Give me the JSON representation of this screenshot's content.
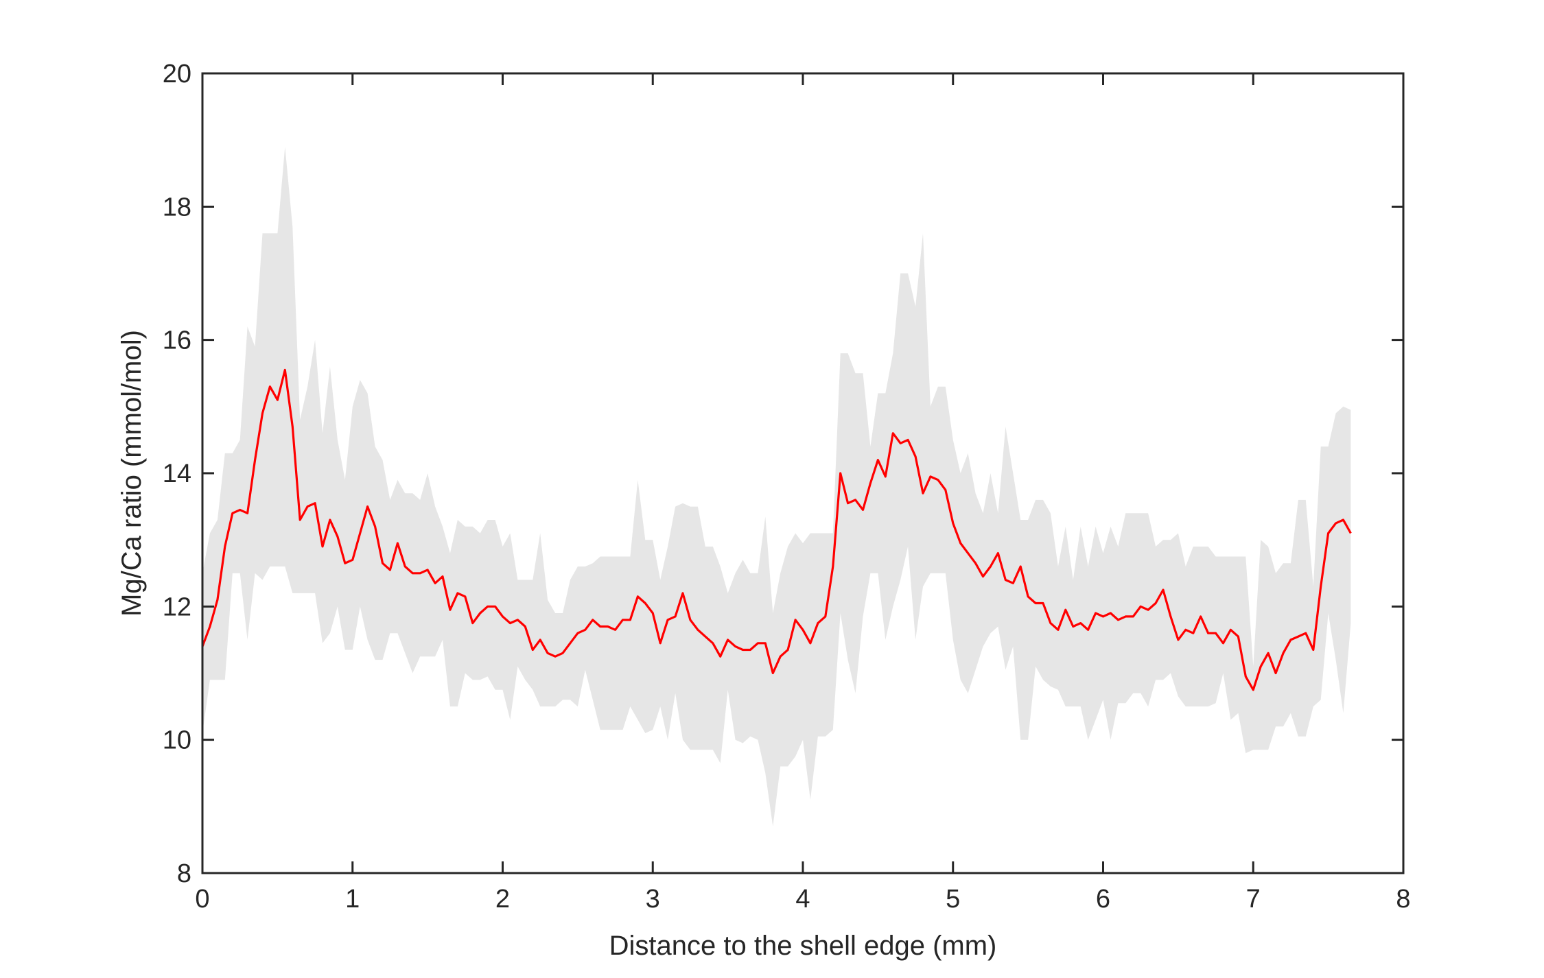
{
  "chart_data": {
    "type": "line",
    "title": "",
    "xlabel": "Distance to the shell edge (mm)",
    "ylabel": "Mg/Ca ratio (mmol/mol)",
    "xlim": [
      0,
      8
    ],
    "ylim": [
      8,
      20
    ],
    "xticks": [
      0,
      1,
      2,
      3,
      4,
      5,
      6,
      7,
      8
    ],
    "yticks": [
      8,
      10,
      12,
      14,
      16,
      18,
      20
    ],
    "grid": false,
    "box": true,
    "colors": {
      "line": "#ff0000",
      "band": "#e6e6e6",
      "axis": "#262626"
    },
    "series": [
      {
        "role": "mean",
        "x": [
          0.0,
          0.05,
          0.1,
          0.15,
          0.2,
          0.25,
          0.3,
          0.35,
          0.4,
          0.45,
          0.5,
          0.55,
          0.6,
          0.65,
          0.7,
          0.75,
          0.8,
          0.85,
          0.9,
          0.95,
          1.0,
          1.05,
          1.1,
          1.15,
          1.2,
          1.25,
          1.3,
          1.35,
          1.4,
          1.45,
          1.5,
          1.55,
          1.6,
          1.65,
          1.7,
          1.75,
          1.8,
          1.85,
          1.9,
          1.95,
          2.0,
          2.05,
          2.1,
          2.15,
          2.2,
          2.25,
          2.3,
          2.35,
          2.4,
          2.45,
          2.5,
          2.55,
          2.6,
          2.65,
          2.7,
          2.75,
          2.8,
          2.85,
          2.9,
          2.95,
          3.0,
          3.05,
          3.1,
          3.15,
          3.2,
          3.25,
          3.3,
          3.35,
          3.4,
          3.45,
          3.5,
          3.55,
          3.6,
          3.65,
          3.7,
          3.75,
          3.8,
          3.85,
          3.9,
          3.95,
          4.0,
          4.05,
          4.1,
          4.15,
          4.2,
          4.25,
          4.3,
          4.35,
          4.4,
          4.45,
          4.5,
          4.55,
          4.6,
          4.65,
          4.7,
          4.75,
          4.8,
          4.85,
          4.9,
          4.95,
          5.0,
          5.05,
          5.1,
          5.15,
          5.2,
          5.25,
          5.3,
          5.35,
          5.4,
          5.45,
          5.5,
          5.55,
          5.6,
          5.65,
          5.7,
          5.75,
          5.8,
          5.85,
          5.9,
          5.95,
          6.0,
          6.05,
          6.1,
          6.15,
          6.2,
          6.25,
          6.3,
          6.35,
          6.4,
          6.45,
          6.5,
          6.55,
          6.6,
          6.65,
          6.7,
          6.75,
          6.8,
          6.85,
          6.9,
          6.95,
          7.0,
          7.05,
          7.1,
          7.15,
          7.2,
          7.25,
          7.3,
          7.35,
          7.4,
          7.45,
          7.5,
          7.55,
          7.6,
          7.65
        ],
        "y": [
          11.4,
          11.7,
          12.1,
          12.9,
          13.4,
          13.45,
          13.4,
          14.2,
          14.9,
          15.3,
          15.1,
          15.55,
          14.7,
          13.3,
          13.5,
          13.55,
          12.9,
          13.3,
          13.05,
          12.65,
          12.7,
          13.1,
          13.5,
          13.2,
          12.65,
          12.55,
          12.95,
          12.6,
          12.5,
          12.5,
          12.55,
          12.35,
          12.45,
          11.95,
          12.2,
          12.15,
          11.75,
          11.9,
          12.0,
          12.0,
          11.85,
          11.75,
          11.8,
          11.7,
          11.35,
          11.5,
          11.3,
          11.25,
          11.3,
          11.45,
          11.6,
          11.65,
          11.8,
          11.7,
          11.7,
          11.65,
          11.8,
          11.8,
          12.15,
          12.05,
          11.9,
          11.45,
          11.8,
          11.85,
          12.2,
          11.8,
          11.65,
          11.55,
          11.45,
          11.25,
          11.5,
          11.4,
          11.35,
          11.35,
          11.45,
          11.45,
          11.0,
          11.25,
          11.35,
          11.8,
          11.65,
          11.45,
          11.75,
          11.85,
          12.6,
          14.0,
          13.55,
          13.6,
          13.45,
          13.85,
          14.2,
          13.95,
          14.6,
          14.45,
          14.5,
          14.25,
          13.7,
          13.95,
          13.9,
          13.75,
          13.25,
          12.95,
          12.8,
          12.65,
          12.45,
          12.6,
          12.8,
          12.4,
          12.35,
          12.6,
          12.15,
          12.05,
          12.05,
          11.75,
          11.65,
          11.95,
          11.7,
          11.75,
          11.65,
          11.9,
          11.85,
          11.9,
          11.8,
          11.85,
          11.85,
          12.0,
          11.95,
          12.05,
          12.25,
          11.85,
          11.5,
          11.65,
          11.6,
          11.85,
          11.6,
          11.6,
          11.45,
          11.65,
          11.55,
          10.95,
          10.75,
          11.1,
          11.3,
          11.0,
          11.3,
          11.5,
          11.55,
          11.6,
          11.35,
          12.3,
          13.1,
          13.25,
          13.3,
          13.1
        ]
      },
      {
        "role": "upper",
        "x": [
          0.0,
          0.05,
          0.1,
          0.15,
          0.2,
          0.25,
          0.3,
          0.35,
          0.4,
          0.45,
          0.5,
          0.55,
          0.6,
          0.65,
          0.7,
          0.75,
          0.8,
          0.85,
          0.9,
          0.95,
          1.0,
          1.05,
          1.1,
          1.15,
          1.2,
          1.25,
          1.3,
          1.35,
          1.4,
          1.45,
          1.5,
          1.55,
          1.6,
          1.65,
          1.7,
          1.75,
          1.8,
          1.85,
          1.9,
          1.95,
          2.0,
          2.05,
          2.1,
          2.15,
          2.2,
          2.25,
          2.3,
          2.35,
          2.4,
          2.45,
          2.5,
          2.55,
          2.6,
          2.65,
          2.7,
          2.75,
          2.8,
          2.85,
          2.9,
          2.95,
          3.0,
          3.05,
          3.1,
          3.15,
          3.2,
          3.25,
          3.3,
          3.35,
          3.4,
          3.45,
          3.5,
          3.55,
          3.6,
          3.65,
          3.7,
          3.75,
          3.8,
          3.85,
          3.9,
          3.95,
          4.0,
          4.05,
          4.1,
          4.15,
          4.2,
          4.25,
          4.3,
          4.35,
          4.4,
          4.45,
          4.5,
          4.55,
          4.6,
          4.65,
          4.7,
          4.75,
          4.8,
          4.85,
          4.9,
          4.95,
          5.0,
          5.05,
          5.1,
          5.15,
          5.2,
          5.25,
          5.3,
          5.35,
          5.4,
          5.45,
          5.5,
          5.55,
          5.6,
          5.65,
          5.7,
          5.75,
          5.8,
          5.85,
          5.9,
          5.95,
          6.0,
          6.05,
          6.1,
          6.15,
          6.2,
          6.25,
          6.3,
          6.35,
          6.4,
          6.45,
          6.5,
          6.55,
          6.6,
          6.65,
          6.7,
          6.75,
          6.8,
          6.85,
          6.9,
          6.95,
          7.0,
          7.05,
          7.1,
          7.15,
          7.2,
          7.25,
          7.3,
          7.35,
          7.4,
          7.45,
          7.5,
          7.55,
          7.6,
          7.65
        ],
        "y": [
          12.5,
          13.1,
          13.3,
          14.3,
          14.3,
          14.5,
          16.2,
          15.9,
          17.6,
          17.6,
          17.6,
          18.9,
          17.7,
          14.8,
          15.3,
          16.0,
          14.6,
          15.6,
          14.5,
          13.9,
          15.0,
          15.4,
          15.2,
          14.4,
          14.2,
          13.6,
          13.9,
          13.7,
          13.7,
          13.6,
          14.0,
          13.5,
          13.2,
          12.8,
          13.3,
          13.2,
          13.2,
          13.1,
          13.3,
          13.3,
          12.9,
          13.1,
          12.4,
          12.4,
          12.4,
          13.1,
          12.1,
          11.9,
          11.9,
          12.4,
          12.6,
          12.6,
          12.65,
          12.75,
          12.75,
          12.75,
          12.75,
          12.75,
          13.9,
          13.0,
          13.0,
          12.4,
          12.9,
          13.5,
          13.55,
          13.5,
          13.5,
          12.9,
          12.9,
          12.6,
          12.2,
          12.5,
          12.7,
          12.5,
          12.5,
          13.35,
          11.9,
          12.5,
          12.9,
          13.1,
          12.95,
          13.1,
          13.1,
          13.1,
          13.1,
          15.8,
          15.8,
          15.5,
          15.5,
          14.4,
          15.2,
          15.2,
          15.8,
          17.0,
          17.0,
          16.5,
          17.6,
          15.0,
          15.3,
          15.3,
          14.5,
          14.0,
          14.3,
          13.7,
          13.4,
          14.0,
          13.4,
          14.7,
          14.0,
          13.3,
          13.3,
          13.6,
          13.6,
          13.4,
          12.6,
          13.2,
          12.4,
          13.2,
          12.6,
          13.2,
          12.8,
          13.2,
          12.9,
          13.4,
          13.4,
          13.4,
          13.4,
          12.9,
          13.0,
          13.0,
          13.1,
          12.6,
          12.9,
          12.9,
          12.9,
          12.75,
          12.75,
          12.75,
          12.75,
          12.75,
          11.1,
          13.0,
          12.9,
          12.5,
          12.65,
          12.65,
          13.6,
          13.6,
          12.3,
          14.4,
          14.4,
          14.9,
          15.0,
          14.95
        ]
      },
      {
        "role": "lower",
        "x": [
          0.0,
          0.05,
          0.1,
          0.15,
          0.2,
          0.25,
          0.3,
          0.35,
          0.4,
          0.45,
          0.5,
          0.55,
          0.6,
          0.65,
          0.7,
          0.75,
          0.8,
          0.85,
          0.9,
          0.95,
          1.0,
          1.05,
          1.1,
          1.15,
          1.2,
          1.25,
          1.3,
          1.35,
          1.4,
          1.45,
          1.5,
          1.55,
          1.6,
          1.65,
          1.7,
          1.75,
          1.8,
          1.85,
          1.9,
          1.95,
          2.0,
          2.05,
          2.1,
          2.15,
          2.2,
          2.25,
          2.3,
          2.35,
          2.4,
          2.45,
          2.5,
          2.55,
          2.6,
          2.65,
          2.7,
          2.75,
          2.8,
          2.85,
          2.9,
          2.95,
          3.0,
          3.05,
          3.1,
          3.15,
          3.2,
          3.25,
          3.3,
          3.35,
          3.4,
          3.45,
          3.5,
          3.55,
          3.6,
          3.65,
          3.7,
          3.75,
          3.8,
          3.85,
          3.9,
          3.95,
          4.0,
          4.05,
          4.1,
          4.15,
          4.2,
          4.25,
          4.3,
          4.35,
          4.4,
          4.45,
          4.5,
          4.55,
          4.6,
          4.65,
          4.7,
          4.75,
          4.8,
          4.85,
          4.9,
          4.95,
          5.0,
          5.05,
          5.1,
          5.15,
          5.2,
          5.25,
          5.3,
          5.35,
          5.4,
          5.45,
          5.5,
          5.55,
          5.6,
          5.65,
          5.7,
          5.75,
          5.8,
          5.85,
          5.9,
          5.95,
          6.0,
          6.05,
          6.1,
          6.15,
          6.2,
          6.25,
          6.3,
          6.35,
          6.4,
          6.45,
          6.5,
          6.55,
          6.6,
          6.65,
          6.7,
          6.75,
          6.8,
          6.85,
          6.9,
          6.95,
          7.0,
          7.05,
          7.1,
          7.15,
          7.2,
          7.25,
          7.3,
          7.35,
          7.4,
          7.45,
          7.5,
          7.55,
          7.6,
          7.65
        ],
        "y": [
          10.1,
          10.9,
          10.9,
          10.9,
          12.5,
          12.5,
          11.5,
          12.5,
          12.4,
          12.6,
          12.6,
          12.6,
          12.2,
          12.2,
          12.2,
          12.2,
          11.45,
          11.6,
          12.0,
          11.35,
          11.35,
          12.0,
          11.5,
          11.2,
          11.2,
          11.6,
          11.6,
          11.3,
          11.0,
          11.25,
          11.25,
          11.25,
          11.5,
          10.5,
          10.5,
          11.0,
          10.9,
          10.9,
          10.95,
          10.75,
          10.75,
          10.3,
          11.1,
          10.9,
          10.75,
          10.5,
          10.5,
          10.5,
          10.6,
          10.6,
          10.5,
          11.05,
          10.6,
          10.15,
          10.15,
          10.15,
          10.15,
          10.5,
          10.3,
          10.1,
          10.15,
          10.5,
          10.0,
          10.7,
          10.0,
          9.85,
          9.85,
          9.85,
          9.85,
          9.65,
          10.75,
          10.0,
          9.95,
          10.05,
          10.0,
          9.5,
          8.7,
          9.6,
          9.6,
          9.75,
          10.0,
          9.1,
          10.05,
          10.05,
          10.15,
          11.9,
          11.2,
          10.7,
          11.85,
          12.5,
          12.5,
          11.5,
          12.0,
          12.4,
          12.9,
          11.5,
          12.3,
          12.5,
          12.5,
          12.5,
          11.5,
          10.9,
          10.7,
          11.05,
          11.4,
          11.6,
          11.7,
          11.05,
          11.4,
          10.0,
          10.0,
          11.1,
          10.9,
          10.8,
          10.75,
          10.5,
          10.5,
          10.5,
          10.0,
          10.3,
          10.6,
          10.0,
          10.55,
          10.55,
          10.7,
          10.7,
          10.5,
          10.9,
          10.9,
          11.0,
          10.65,
          10.5,
          10.5,
          10.5,
          10.5,
          10.55,
          11.0,
          10.3,
          10.4,
          9.8,
          9.85,
          9.85,
          9.85,
          10.2,
          10.2,
          10.4,
          10.05,
          10.05,
          10.5,
          10.6,
          11.9,
          11.2,
          10.4,
          11.75
        ]
      }
    ]
  }
}
